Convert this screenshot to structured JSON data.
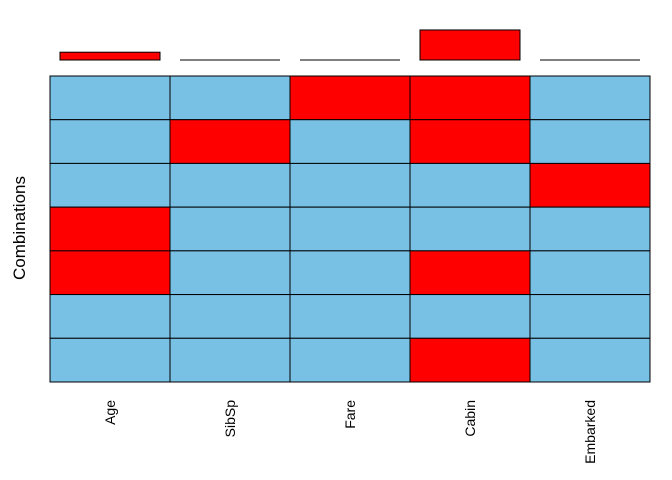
{
  "chart_data": {
    "type": "heatmap",
    "ylabel": "Combinations",
    "variables": [
      "Age",
      "SibSp",
      "Fare",
      "Cabin",
      "Embarked"
    ],
    "missing_proportion": [
      0.2,
      0.0,
      0.0,
      0.77,
      0.0
    ],
    "combinations": [
      [
        0,
        0,
        1,
        1,
        0
      ],
      [
        0,
        1,
        0,
        1,
        0
      ],
      [
        0,
        0,
        0,
        0,
        1
      ],
      [
        1,
        0,
        0,
        0,
        0
      ],
      [
        1,
        0,
        0,
        1,
        0
      ],
      [
        0,
        0,
        0,
        0,
        0
      ],
      [
        0,
        0,
        0,
        1,
        0
      ]
    ],
    "legend": "none"
  },
  "colors": {
    "missing": "#ff0000",
    "observed": "#78c1e5",
    "border": "#000000"
  }
}
